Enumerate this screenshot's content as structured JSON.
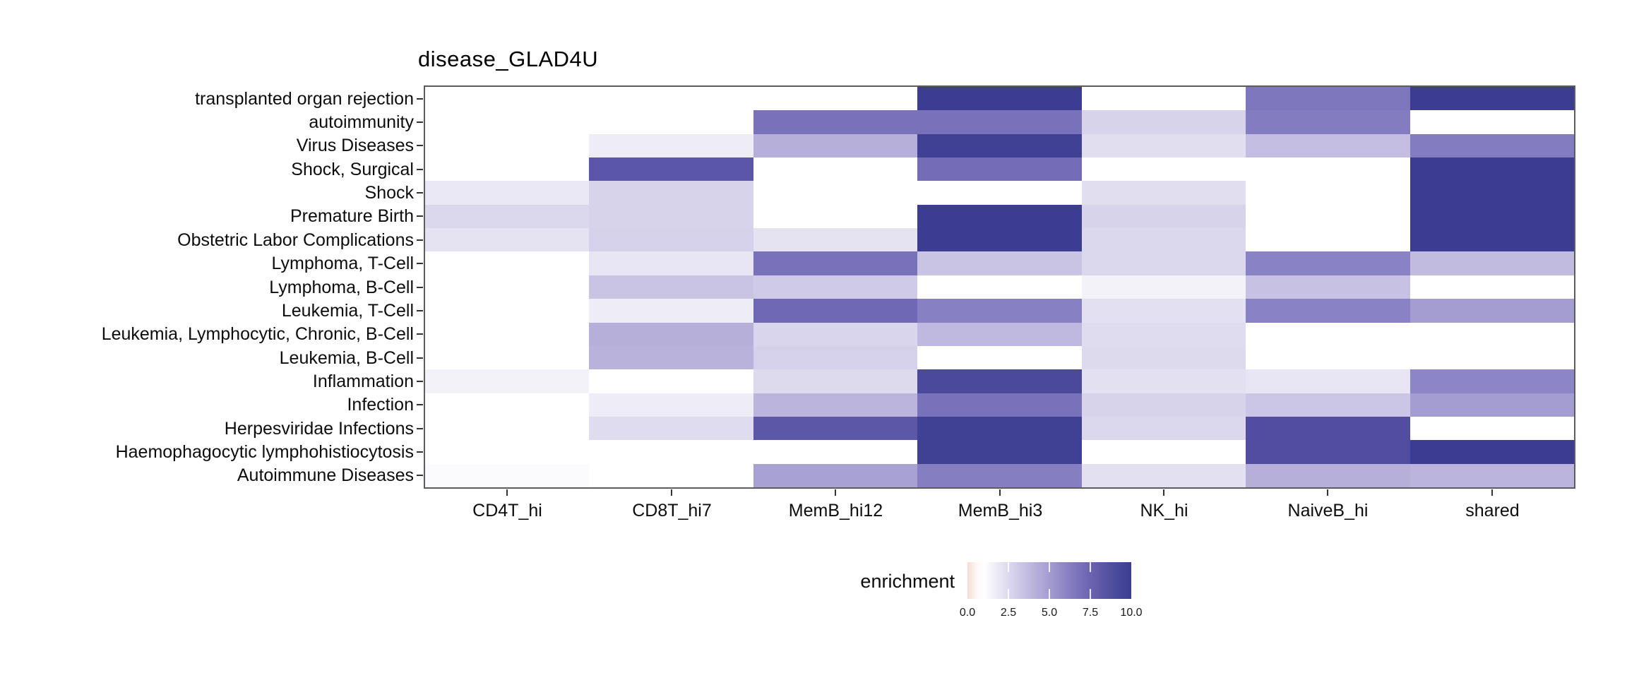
{
  "chart_data": {
    "type": "heatmap",
    "title": "disease_GLAD4U",
    "x_categories": [
      "CD4T_hi",
      "CD8T_hi7",
      "MemB_hi12",
      "MemB_hi3",
      "NK_hi",
      "NaiveB_hi",
      "shared"
    ],
    "y_categories": [
      "transplanted organ rejection",
      "autoimmunity",
      "Virus Diseases",
      "Shock, Surgical",
      "Shock",
      "Premature Birth",
      "Obstetric Labor Complications",
      "Lymphoma, T-Cell",
      "Lymphoma, B-Cell",
      "Leukemia, T-Cell",
      "Leukemia, Lymphocytic, Chronic, B-Cell",
      "Leukemia, B-Cell",
      "Inflammation",
      "Infection",
      "Herpesviridae Infections",
      "Haemophagocytic lymphohistiocytosis",
      "Autoimmune Diseases"
    ],
    "values": [
      [
        null,
        null,
        null,
        10,
        null,
        6.7,
        10
      ],
      [
        null,
        null,
        7.0,
        7.0,
        2.5,
        6.5,
        null
      ],
      [
        null,
        1.3,
        4.2,
        9.7,
        2.0,
        3.5,
        6.5
      ],
      [
        null,
        8.3,
        null,
        7.2,
        null,
        null,
        10
      ],
      [
        1.5,
        2.5,
        null,
        null,
        2.0,
        null,
        10
      ],
      [
        2.3,
        2.5,
        null,
        10,
        2.5,
        null,
        10
      ],
      [
        1.8,
        2.6,
        1.8,
        10,
        2.3,
        null,
        10
      ],
      [
        null,
        1.7,
        7.0,
        3.2,
        2.3,
        6.2,
        3.6
      ],
      [
        null,
        3.2,
        2.9,
        null,
        1.0,
        3.3,
        null
      ],
      [
        null,
        1.3,
        7.4,
        6.3,
        1.9,
        6.2,
        5.0
      ],
      [
        null,
        4.2,
        2.4,
        3.7,
        2.1,
        null,
        null
      ],
      [
        null,
        4.0,
        2.6,
        null,
        2.2,
        null,
        null
      ],
      [
        1.0,
        null,
        2.2,
        9.0,
        1.9,
        1.7,
        6.0
      ],
      [
        null,
        1.3,
        3.9,
        7.0,
        2.5,
        3.1,
        5.0
      ],
      [
        null,
        2.1,
        8.2,
        9.7,
        2.3,
        8.7,
        null
      ],
      [
        null,
        null,
        null,
        9.7,
        null,
        8.7,
        10
      ],
      [
        0.7,
        null,
        4.8,
        6.4,
        1.9,
        4.2,
        3.9
      ]
    ],
    "legend": {
      "title": "enrichment",
      "ticks": [
        "0.0",
        "2.5",
        "5.0",
        "7.5",
        "10.0"
      ],
      "limits": [
        0,
        10
      ]
    },
    "color_scale": {
      "na_color": "#ffffff",
      "anchors": [
        {
          "v": 0,
          "c": "#f6e1d9"
        },
        {
          "v": 0.5,
          "c": "#ffffff"
        },
        {
          "v": 1,
          "c": "#f4f2f9"
        },
        {
          "v": 2,
          "c": "#e1def0"
        },
        {
          "v": 3,
          "c": "#cdc8e6"
        },
        {
          "v": 4,
          "c": "#b9b3dc"
        },
        {
          "v": 5,
          "c": "#a49dd1"
        },
        {
          "v": 6,
          "c": "#8d86c6"
        },
        {
          "v": 7,
          "c": "#7971ba"
        },
        {
          "v": 8,
          "c": "#615aaa"
        },
        {
          "v": 9,
          "c": "#4a499b"
        },
        {
          "v": 10,
          "c": "#3c3d92"
        }
      ],
      "legend_gradient": [
        {
          "pos": 0,
          "c": "#f3ddd4"
        },
        {
          "pos": 0.06,
          "c": "#fdf9f7"
        },
        {
          "pos": 0.1,
          "c": "#ffffff"
        },
        {
          "pos": 0.16,
          "c": "#f1eff8"
        },
        {
          "pos": 0.25,
          "c": "#dcd8ee"
        },
        {
          "pos": 0.375,
          "c": "#c0badf"
        },
        {
          "pos": 0.5,
          "c": "#a39cd0"
        },
        {
          "pos": 0.625,
          "c": "#867ec1"
        },
        {
          "pos": 0.75,
          "c": "#6c64b1"
        },
        {
          "pos": 0.875,
          "c": "#504f9f"
        },
        {
          "pos": 1,
          "c": "#3c3d92"
        }
      ]
    }
  }
}
